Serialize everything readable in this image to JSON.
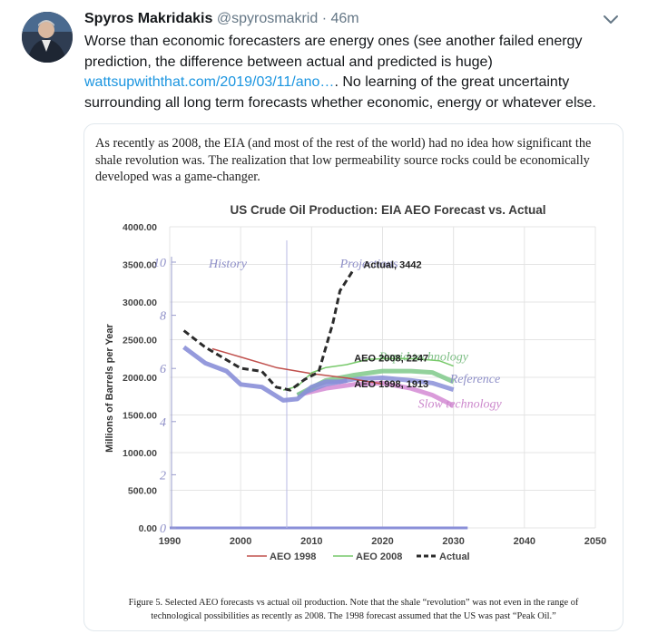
{
  "tweet": {
    "author_name": "Spyros Makridakis",
    "handle": "@spyrosmakrid",
    "time": "46m",
    "text_before_link": "Worse than economic forecasters are energy ones (see another failed energy prediction, the difference between actual and predicted is huge) ",
    "link": "wattsupwiththat.com/2019/03/11/ano…",
    "text_after_link": ". No learning of the great uncertainty surrounding all long term forecasts whether economic, energy or whatever else."
  },
  "card": {
    "quote": "As recently as 2008, the EIA (and most of the rest of the world) had no idea how significant the shale revolution was. The realization that low permeability source rocks could be economically developed was a game-changer.",
    "caption_line1": "Figure 5. Selected AEO forecasts vs actual oil production.  Note that the shale “revolution” was not even in the range of",
    "caption_line2": "technological possibilities as recently as 2008.  The 1998 forecast assumed that the US was past “Peak Oil.”"
  },
  "chart_data": {
    "type": "line",
    "title": "US Crude Oil Production: EIA AEO Forecast vs. Actual",
    "ylabel": "Millions of Barrels per Year",
    "xlabel": "",
    "xlim": [
      1990,
      2050
    ],
    "ylim": [
      0,
      4000
    ],
    "x_ticks": [
      "1990",
      "2000",
      "2010",
      "2020",
      "2030",
      "2040",
      "2050"
    ],
    "y_ticks": [
      "0.00",
      "500.00",
      "1000.00",
      "1500.00",
      "2000.00",
      "2500.00",
      "3000.00",
      "3500.00",
      "4000.00"
    ],
    "series": [
      {
        "name": "AEO 1998",
        "color": "#c0504d",
        "dash": "solid",
        "x": [
          1996,
          2000,
          2005,
          2010,
          2015,
          2020
        ],
        "y": [
          2380,
          2270,
          2130,
          2050,
          1990,
          1913
        ]
      },
      {
        "name": "AEO 2008",
        "color": "#77c96a",
        "dash": "solid",
        "x": [
          2006,
          2008,
          2010,
          2012,
          2015,
          2018,
          2020,
          2023,
          2025,
          2028,
          2030
        ],
        "y": [
          1830,
          1880,
          2060,
          2130,
          2170,
          2240,
          2247,
          2250,
          2245,
          2220,
          2150
        ]
      },
      {
        "name": "Actual",
        "color": "#2b2b2b",
        "dash": "dash",
        "x": [
          1992,
          1995,
          2000,
          2003,
          2005,
          2007,
          2009,
          2011,
          2013,
          2014,
          2016
        ],
        "y": [
          2620,
          2400,
          2120,
          2080,
          1870,
          1830,
          1970,
          2070,
          2720,
          3150,
          3442
        ]
      }
    ],
    "annotations": [
      {
        "text": "Actual, 3442",
        "x": 2018,
        "y": 3442
      },
      {
        "text": "AEO 2008, 2247",
        "x": 2020,
        "y": 2247
      },
      {
        "text": "AEO 1998, 1913",
        "x": 2021,
        "y": 1913
      }
    ],
    "underlay": {
      "labels": [
        "History",
        "Projections",
        "Rapid technology",
        "Reference",
        "Slow technology"
      ],
      "y_ticks": [
        "0",
        "2",
        "4",
        "6",
        "8",
        "10"
      ],
      "ylim": [
        0,
        10
      ],
      "history_x": [
        1992,
        1995,
        1998,
        2000,
        2003,
        2006,
        2008,
        2010,
        2012,
        2014,
        2015
      ],
      "history_y": [
        6.8,
        6.2,
        5.9,
        5.4,
        5.3,
        4.8,
        4.85,
        5.3,
        5.5,
        5.5,
        5.55
      ],
      "projection_x": [
        2008,
        2012,
        2016,
        2020,
        2024,
        2027,
        2030
      ],
      "rapid_y": [
        5.0,
        5.55,
        5.75,
        5.9,
        5.9,
        5.85,
        5.5
      ],
      "reference_y": [
        5.0,
        5.4,
        5.6,
        5.65,
        5.55,
        5.45,
        5.2
      ],
      "slow_y": [
        5.0,
        5.25,
        5.4,
        5.45,
        5.25,
        5.0,
        4.6
      ],
      "colors": {
        "history": "#8a8fd8",
        "rapid": "#7fc98a",
        "reference": "#8a8fd8",
        "slow": "#d38ad3",
        "overlay_text": "#8f90c8"
      }
    },
    "legend": {
      "placement": "bottom",
      "entries": [
        "AEO 1998",
        "AEO 2008",
        "Actual"
      ]
    },
    "grid": true
  }
}
